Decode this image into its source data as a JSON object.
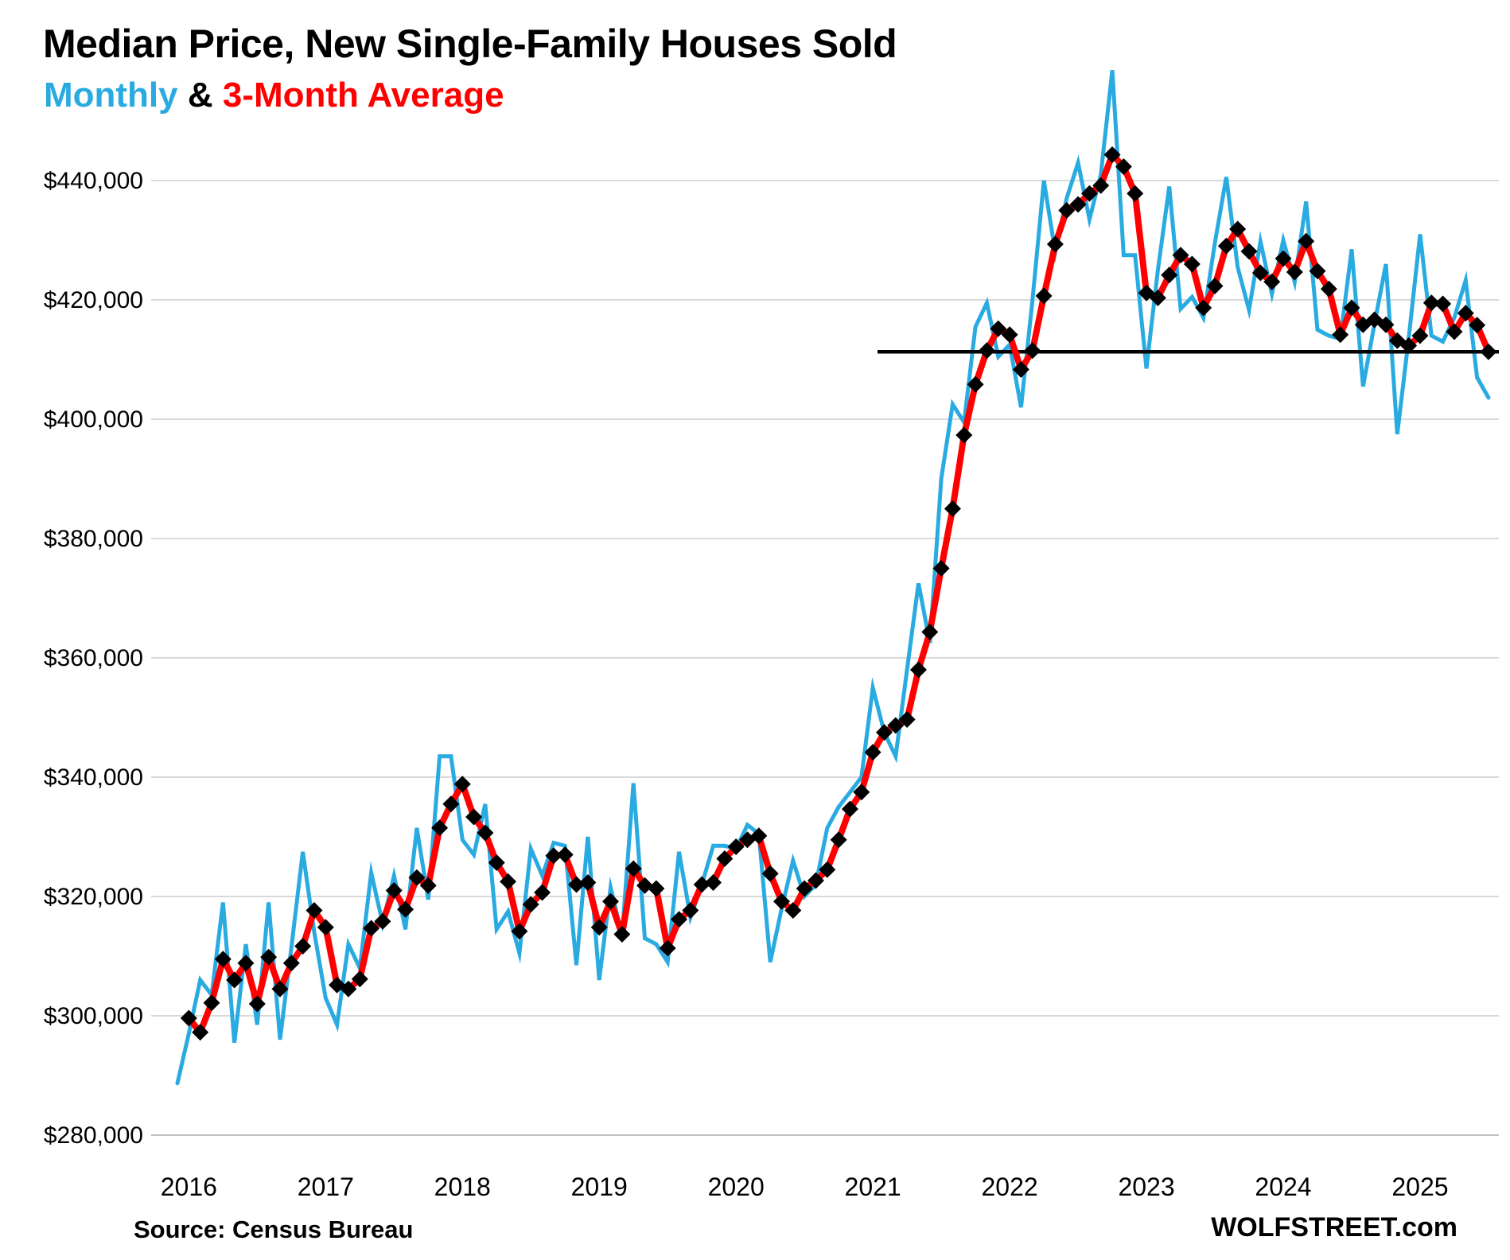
{
  "header": {
    "title": "Median Price, New Single-Family Houses Sold",
    "subtitle_monthly": "Monthly",
    "subtitle_amp": " & ",
    "subtitle_average": "3-Month Average"
  },
  "footer": {
    "source": "Source: Census Bureau",
    "brand": "WOLFSTREET.com"
  },
  "colors": {
    "monthly_line": "#29ABE2",
    "average_line": "#FF0000",
    "marker": "#000000",
    "gridline": "#D9D9D9",
    "axis_line": "#BFBFBF",
    "reference_line": "#000000",
    "text": "#000000"
  },
  "chart_data": {
    "type": "line",
    "title": "Median Price, New Single-Family Houses Sold",
    "subtitle": "Monthly & 3-Month Average",
    "x_start": "2015-12",
    "x_end": "2025-07",
    "x_tick_labels": [
      "2016",
      "2017",
      "2018",
      "2019",
      "2020",
      "2021",
      "2022",
      "2023",
      "2024",
      "2025"
    ],
    "y_axis": {
      "ticks": [
        {
          "value": 280000,
          "label": "$280,000"
        },
        {
          "value": 300000,
          "label": "$300,000"
        },
        {
          "value": 320000,
          "label": "$320,000"
        },
        {
          "value": 340000,
          "label": "$340,000"
        },
        {
          "value": 360000,
          "label": "$360,000"
        },
        {
          "value": 380000,
          "label": "$380,000"
        },
        {
          "value": 400000,
          "label": "$400,000"
        },
        {
          "value": 420000,
          "label": "$420,000"
        },
        {
          "value": 440000,
          "label": "$440,000"
        }
      ],
      "ylim": [
        280000,
        460000
      ]
    },
    "grid": true,
    "legend_position": "in-subtitle",
    "reference_line": {
      "value": 411300,
      "start": "2021-01"
    },
    "series": [
      {
        "name": "Monthly",
        "color": "#29ABE2",
        "values": [
          288700,
          297000,
          306000,
          303500,
          319000,
          295500,
          312000,
          298500,
          319000,
          296000,
          311500,
          327500,
          314000,
          303000,
          298500,
          312000,
          308000,
          324000,
          315500,
          323500,
          314500,
          331500,
          319500,
          343500,
          343500,
          329500,
          327000,
          335500,
          314500,
          317500,
          310500,
          328000,
          323500,
          329000,
          328500,
          308500,
          330000,
          306000,
          321500,
          313500,
          339000,
          313000,
          312000,
          309000,
          327500,
          316500,
          322000,
          328500,
          328500,
          328000,
          332000,
          330500,
          309000,
          318000,
          326000,
          320000,
          322000,
          331500,
          335000,
          337500,
          340000,
          355000,
          347500,
          343500,
          358000,
          372500,
          362500,
          390000,
          402500,
          399500,
          415500,
          419500,
          410500,
          412500,
          402000,
          420000,
          440000,
          428000,
          437000,
          443000,
          433500,
          441000,
          458500,
          427500,
          427500,
          408500,
          425000,
          439000,
          418500,
          420500,
          417000,
          429500,
          440600,
          425500,
          418300,
          429800,
          421000,
          430000,
          423000,
          436500,
          415000,
          414000,
          413500,
          428500,
          405500,
          416000,
          426000,
          397500,
          413500,
          431000,
          414000,
          413000,
          417000,
          423300,
          407000,
          403600
        ]
      },
      {
        "name": "3-Month Average",
        "color": "#FF0000",
        "marker": "diamond",
        "derived": "trailing-3-month-average-of-Monthly",
        "first_point": "2016-01",
        "seed_value": 299600
      }
    ]
  }
}
